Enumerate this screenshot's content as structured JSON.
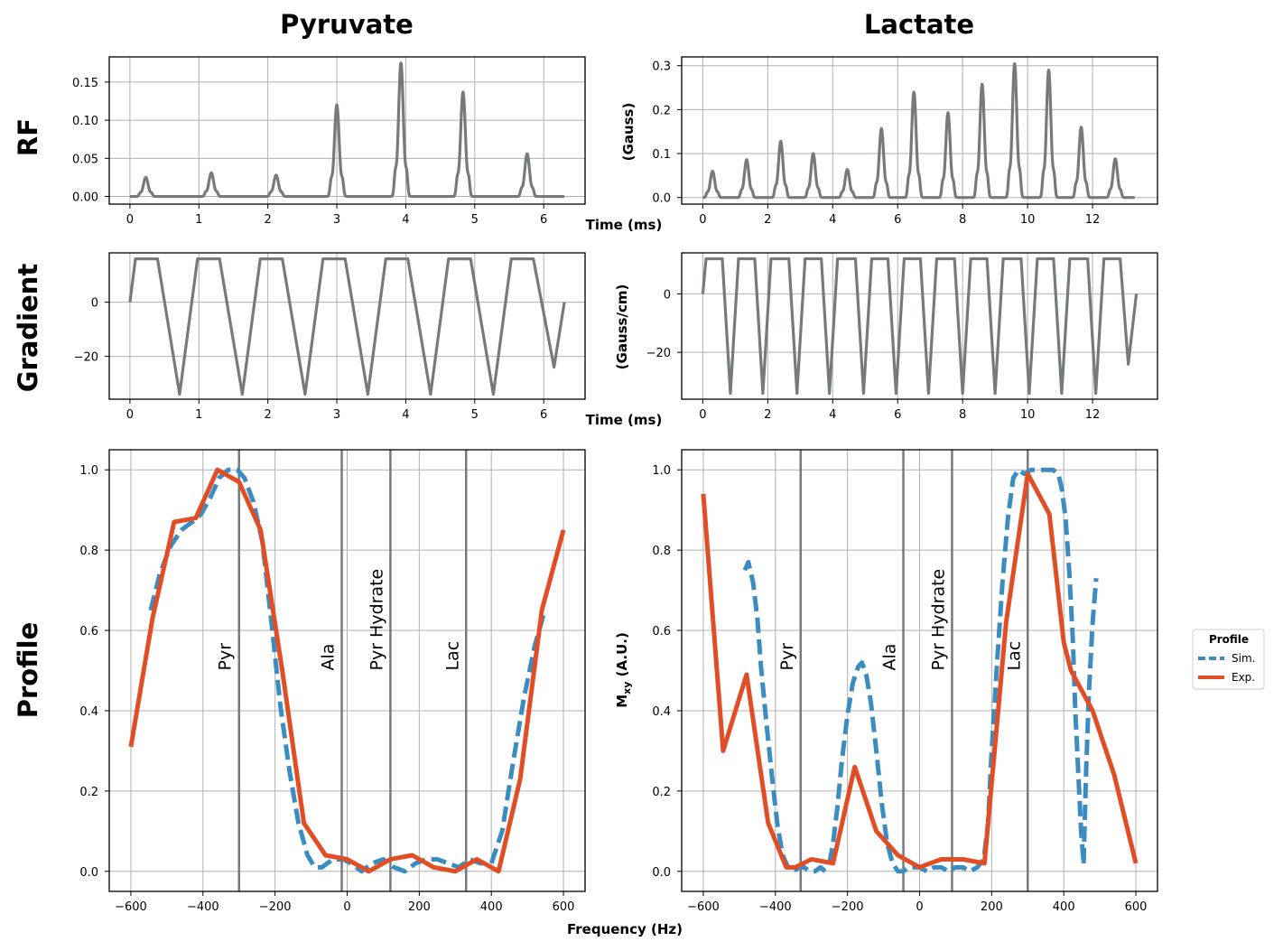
{
  "figure": {
    "column_titles": [
      "Pyruvate",
      "Lactate"
    ],
    "row_titles": [
      "RF",
      "Gradient",
      "Profile"
    ]
  },
  "colors": {
    "waveform": "#767a7f",
    "sim": "#3a8cc1",
    "exp": "#e14e26",
    "marker": "#767a7f",
    "grid": "#b0b0b0"
  },
  "legend": {
    "title": "Profile",
    "entries": [
      {
        "label": "Sim.",
        "style": "dashed",
        "color": "#3a8cc1"
      },
      {
        "label": "Exp.",
        "style": "solid",
        "color": "#e14e26"
      }
    ]
  },
  "chart_data": [
    {
      "id": "rf-pyr",
      "type": "line",
      "row": "RF",
      "column": "Pyruvate",
      "xlabel": "",
      "ylabel": "",
      "xlim": [
        -0.3,
        6.6
      ],
      "ylim": [
        -0.01,
        0.183
      ],
      "xticks": [
        0,
        1,
        2,
        3,
        4,
        5,
        6
      ],
      "yticks": [
        0.0,
        0.05,
        0.1,
        0.15
      ],
      "ytick_format": "2",
      "x_end": 6.3,
      "pulses": [
        {
          "t": 0.23,
          "amp": 0.025,
          "w": 0.035
        },
        {
          "t": 1.18,
          "amp": 0.031,
          "w": 0.035
        },
        {
          "t": 2.12,
          "amp": 0.028,
          "w": 0.035
        },
        {
          "t": 3.0,
          "amp": 0.12,
          "w": 0.035
        },
        {
          "t": 3.93,
          "amp": 0.175,
          "w": 0.035
        },
        {
          "t": 4.83,
          "amp": 0.137,
          "w": 0.035
        },
        {
          "t": 5.76,
          "amp": 0.056,
          "w": 0.035
        }
      ]
    },
    {
      "id": "rf-lac",
      "type": "line",
      "row": "RF",
      "column": "Lactate",
      "xlabel": "Time (ms)",
      "ylabel": "(Gauss)",
      "xlim": [
        -0.65,
        14.0
      ],
      "ylim": [
        -0.015,
        0.32
      ],
      "xticks": [
        0,
        2,
        4,
        6,
        8,
        10,
        12
      ],
      "yticks": [
        0.0,
        0.1,
        0.2,
        0.3
      ],
      "ytick_format": "1",
      "x_end": 13.3,
      "pulses": [
        {
          "t": 0.3,
          "amp": 0.06,
          "w": 0.07
        },
        {
          "t": 1.35,
          "amp": 0.086,
          "w": 0.07
        },
        {
          "t": 2.4,
          "amp": 0.128,
          "w": 0.07
        },
        {
          "t": 3.4,
          "amp": 0.1,
          "w": 0.07
        },
        {
          "t": 4.45,
          "amp": 0.064,
          "w": 0.07
        },
        {
          "t": 5.5,
          "amp": 0.157,
          "w": 0.07
        },
        {
          "t": 6.5,
          "amp": 0.24,
          "w": 0.07
        },
        {
          "t": 7.55,
          "amp": 0.193,
          "w": 0.07
        },
        {
          "t": 8.6,
          "amp": 0.258,
          "w": 0.07
        },
        {
          "t": 9.6,
          "amp": 0.305,
          "w": 0.07
        },
        {
          "t": 10.65,
          "amp": 0.29,
          "w": 0.07
        },
        {
          "t": 11.65,
          "amp": 0.16,
          "w": 0.07
        },
        {
          "t": 12.7,
          "amp": 0.088,
          "w": 0.07
        }
      ]
    },
    {
      "id": "grad-pyr",
      "type": "line",
      "row": "Gradient",
      "column": "Pyruvate",
      "xlabel": "",
      "ylabel": "",
      "xlim": [
        -0.3,
        6.6
      ],
      "ylim": [
        -35.8,
        18.2
      ],
      "xticks": [
        0,
        1,
        2,
        3,
        4,
        5,
        6
      ],
      "yticks": [
        -20,
        0
      ],
      "ytick_format": "0",
      "x": [
        0,
        0.08,
        0.4,
        0.72,
        0.98,
        1.3,
        1.63,
        1.89,
        2.21,
        2.54,
        2.8,
        3.12,
        3.45,
        3.71,
        4.03,
        4.36,
        4.62,
        4.94,
        5.27,
        5.53,
        5.85,
        6.15,
        6.3
      ],
      "y": [
        0,
        16,
        16,
        -34,
        16,
        16,
        -34,
        16,
        16,
        -34,
        16,
        16,
        -34,
        16,
        16,
        -34,
        16,
        16,
        -34,
        16,
        16,
        -24,
        0
      ]
    },
    {
      "id": "grad-lac",
      "type": "line",
      "row": "Gradient",
      "column": "Lactate",
      "xlabel": "Time (ms)",
      "ylabel": "(Gauss/cm)",
      "xlim": [
        -0.65,
        14.0
      ],
      "ylim": [
        -36.0,
        14.0
      ],
      "xticks": [
        0,
        2,
        4,
        6,
        8,
        10,
        12
      ],
      "yticks": [
        -20,
        0
      ],
      "ytick_format": "0",
      "x": [
        0,
        0.1,
        0.6,
        0.85,
        1.1,
        1.6,
        1.85,
        2.1,
        2.65,
        2.9,
        3.15,
        3.65,
        3.9,
        4.15,
        4.7,
        4.95,
        5.2,
        5.7,
        5.95,
        6.2,
        6.7,
        6.95,
        7.2,
        7.75,
        8.0,
        8.25,
        8.75,
        9.0,
        9.25,
        9.8,
        10.05,
        10.3,
        10.8,
        11.05,
        11.3,
        11.85,
        12.1,
        12.35,
        12.85,
        13.1,
        13.35
      ],
      "y": [
        0,
        12,
        12,
        -34,
        12,
        12,
        -34,
        12,
        12,
        -34,
        12,
        12,
        -34,
        12,
        12,
        -34,
        12,
        12,
        -34,
        12,
        12,
        -34,
        12,
        12,
        -34,
        12,
        12,
        -34,
        12,
        12,
        -34,
        12,
        12,
        -34,
        12,
        12,
        -34,
        12,
        12,
        -24,
        0
      ]
    },
    {
      "id": "profile-pyr",
      "type": "line",
      "row": "Profile",
      "column": "Pyruvate",
      "xlabel": "",
      "ylabel": "",
      "xlim": [
        -660,
        660
      ],
      "ylim": [
        -0.05,
        1.05
      ],
      "xticks": [
        -600,
        -400,
        -200,
        0,
        200,
        400,
        600
      ],
      "yticks": [
        0.0,
        0.2,
        0.4,
        0.6,
        0.8,
        1.0
      ],
      "ytick_format": "1",
      "series": [
        {
          "name": "Sim.",
          "style": "dashed",
          "x": [
            -545,
            -520,
            -490,
            -460,
            -430,
            -405,
            -380,
            -355,
            -330,
            -305,
            -285,
            -260,
            -235,
            -210,
            -185,
            -160,
            -135,
            -110,
            -90,
            -70,
            -40,
            -10,
            10,
            40,
            70,
            100,
            130,
            160,
            190,
            220,
            250,
            280,
            310,
            340,
            370,
            400,
            430,
            460,
            490,
            520,
            545
          ],
          "y": [
            0.65,
            0.74,
            0.81,
            0.85,
            0.87,
            0.89,
            0.93,
            0.98,
            1.0,
            1.0,
            0.98,
            0.92,
            0.82,
            0.62,
            0.41,
            0.25,
            0.12,
            0.04,
            0.01,
            0.01,
            0.03,
            0.03,
            0.02,
            0.0,
            0.02,
            0.03,
            0.01,
            0.0,
            0.02,
            0.03,
            0.03,
            0.02,
            0.01,
            0.03,
            0.02,
            0.02,
            0.1,
            0.27,
            0.43,
            0.56,
            0.64
          ]
        },
        {
          "name": "Exp.",
          "style": "solid",
          "x": [
            -600,
            -540,
            -480,
            -420,
            -360,
            -300,
            -240,
            -180,
            -120,
            -60,
            0,
            60,
            120,
            180,
            240,
            300,
            360,
            420,
            480,
            540,
            600
          ],
          "y": [
            0.31,
            0.63,
            0.87,
            0.88,
            1.0,
            0.97,
            0.85,
            0.5,
            0.12,
            0.04,
            0.03,
            0.0,
            0.03,
            0.04,
            0.01,
            0.0,
            0.03,
            0.0,
            0.23,
            0.65,
            0.85
          ]
        }
      ],
      "markers": [
        {
          "x": -300,
          "label": "Pyr"
        },
        {
          "x": -15,
          "label": "Ala"
        },
        {
          "x": 120,
          "label": "Pyr Hydrate"
        },
        {
          "x": 330,
          "label": "Lac"
        }
      ]
    },
    {
      "id": "profile-lac",
      "type": "line",
      "row": "Profile",
      "column": "Lactate",
      "xlabel": "Frequency (Hz)",
      "ylabel": "M_xy (A.U.)",
      "xlim": [
        -660,
        660
      ],
      "ylim": [
        -0.05,
        1.05
      ],
      "xticks": [
        -600,
        -400,
        -200,
        0,
        200,
        400,
        600
      ],
      "yticks": [
        0.0,
        0.2,
        0.4,
        0.6,
        0.8,
        1.0
      ],
      "ytick_format": "1",
      "series": [
        {
          "name": "Sim.",
          "style": "dashed",
          "segments": [
            {
              "x": [
                -485,
                -475,
                -462,
                -450,
                -440,
                -425,
                -410,
                -395,
                -380,
                -365,
                -350,
                -335,
                -320,
                -305,
                -290,
                -275,
                -262
              ],
              "y": [
                0.75,
                0.77,
                0.72,
                0.63,
                0.51,
                0.37,
                0.24,
                0.12,
                0.04,
                0.01,
                0.0,
                0.01,
                0.01,
                0.0,
                0.0,
                0.01,
                0.0
              ]
            },
            {
              "x": [
                -250,
                -240,
                -228,
                -215,
                -200,
                -185,
                -170,
                -160,
                -148,
                -135,
                -120,
                -105,
                -90,
                -75,
                -60,
                -45,
                -30,
                -15,
                0,
                20,
                40,
                60,
                80,
                100,
                120,
                140,
                160,
                178,
                190,
                200,
                215,
                230,
                245,
                260,
                275,
                290,
                310,
                330,
                350,
                370,
                385,
                395,
                405,
                415,
                425,
                432,
                440,
                448,
                455
              ],
              "y": [
                0.02,
                0.07,
                0.16,
                0.28,
                0.39,
                0.47,
                0.51,
                0.52,
                0.49,
                0.42,
                0.3,
                0.17,
                0.07,
                0.02,
                0.0,
                0.0,
                0.01,
                0.01,
                0.01,
                0.0,
                0.01,
                0.01,
                0.0,
                0.01,
                0.01,
                0.0,
                0.01,
                0.03,
                0.12,
                0.3,
                0.52,
                0.72,
                0.88,
                0.98,
                1.0,
                0.99,
                1.0,
                1.0,
                1.0,
                1.0,
                0.99,
                0.95,
                0.88,
                0.75,
                0.58,
                0.4,
                0.25,
                0.1,
                0.02
              ]
            },
            {
              "x": [
                455,
                462,
                470,
                480,
                490
              ],
              "y": [
                0.02,
                0.25,
                0.45,
                0.62,
                0.73
              ]
            }
          ]
        },
        {
          "name": "Exp.",
          "style": "solid",
          "x": [
            -600,
            -545,
            -480,
            -420,
            -370,
            -345,
            -300,
            -240,
            -180,
            -120,
            -60,
            0,
            60,
            120,
            180,
            240,
            300,
            360,
            400,
            420,
            480,
            540,
            600
          ],
          "y": [
            0.94,
            0.3,
            0.49,
            0.12,
            0.01,
            0.01,
            0.03,
            0.02,
            0.26,
            0.1,
            0.04,
            0.01,
            0.03,
            0.03,
            0.02,
            0.62,
            0.99,
            0.89,
            0.57,
            0.5,
            0.4,
            0.24,
            0.02
          ]
        }
      ],
      "markers": [
        {
          "x": -330,
          "label": "Pyr"
        },
        {
          "x": -45,
          "label": "Ala"
        },
        {
          "x": 90,
          "label": "Pyr Hydrate"
        },
        {
          "x": 300,
          "label": "Lac"
        }
      ]
    }
  ]
}
